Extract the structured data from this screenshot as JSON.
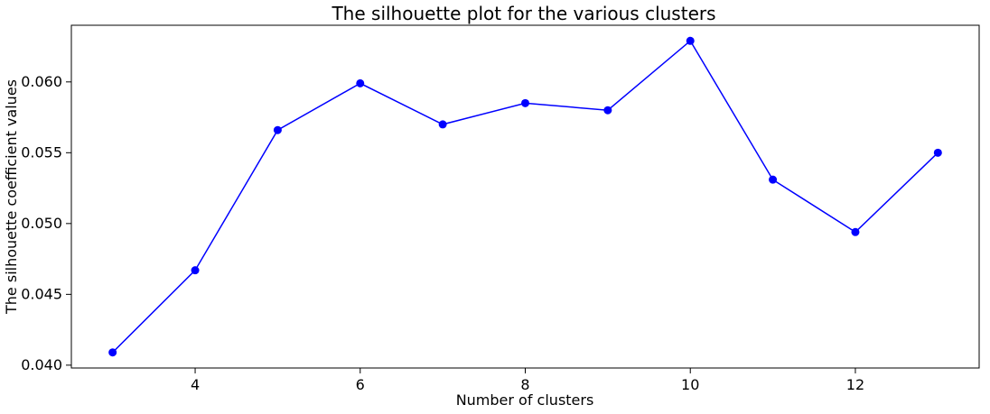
{
  "chart_data": {
    "type": "line",
    "title": "The silhouette plot for the various clusters",
    "xlabel": "Number of clusters",
    "ylabel": "The silhouette coefficient values",
    "x": [
      3,
      4,
      5,
      6,
      7,
      8,
      9,
      10,
      11,
      12,
      13
    ],
    "series": [
      {
        "name": "silhouette",
        "values": [
          0.0409,
          0.0467,
          0.0566,
          0.0599,
          0.057,
          0.0585,
          0.058,
          0.0629,
          0.0531,
          0.0494,
          0.055
        ]
      }
    ],
    "xlim": [
      2.5,
      13.5
    ],
    "ylim": [
      0.0398,
      0.064
    ],
    "xticks": [
      4,
      6,
      8,
      10,
      12
    ],
    "xtick_labels": [
      "4",
      "6",
      "8",
      "10",
      "12"
    ],
    "yticks": [
      0.04,
      0.045,
      0.05,
      0.055,
      0.06
    ],
    "ytick_labels": [
      "0.040",
      "0.045",
      "0.050",
      "0.055",
      "0.060"
    ],
    "grid": false,
    "line_color": "#0000ff",
    "marker_color": "#0000ff"
  }
}
